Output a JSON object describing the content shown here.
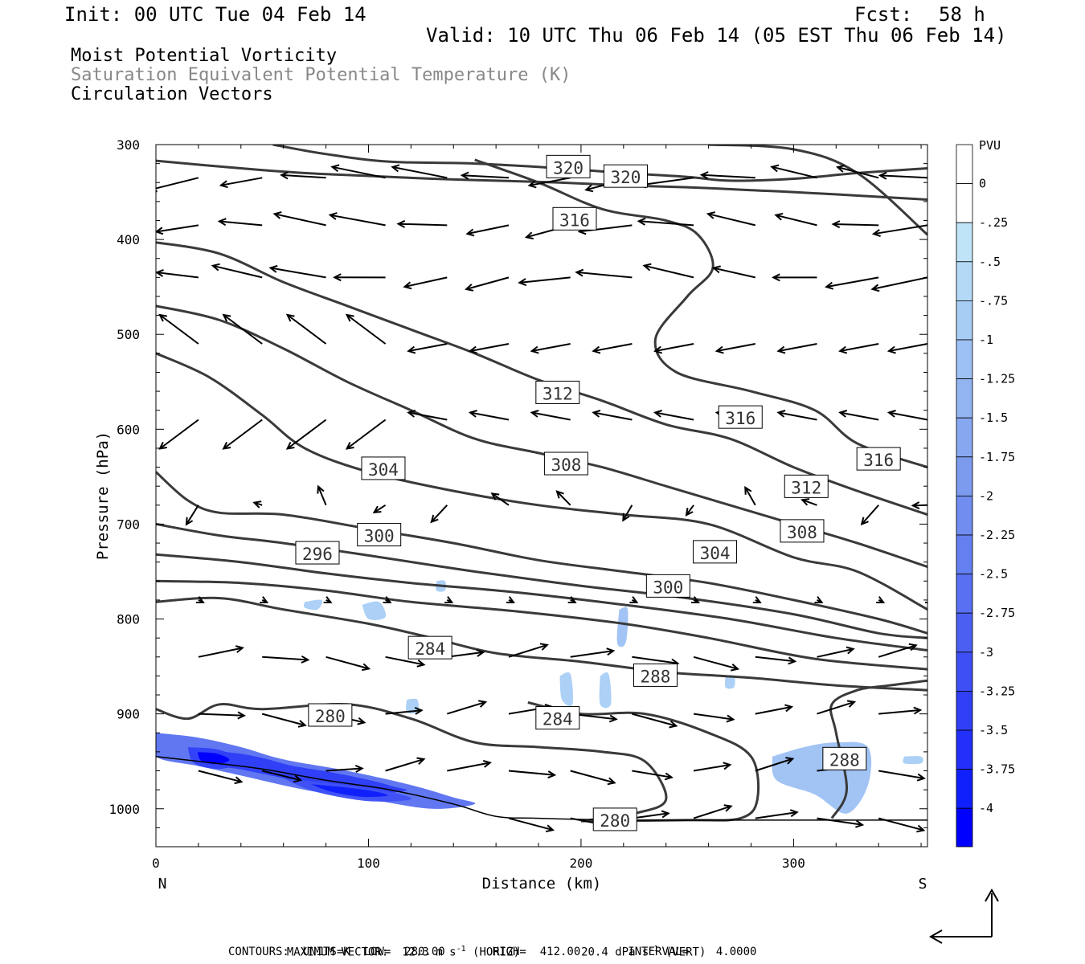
{
  "header": {
    "init": "Init: 00 UTC Tue 04 Feb 14",
    "fcst_label": "Fcst:",
    "fcst_value": "58 h",
    "valid": "Valid: 10 UTC Thu 06 Feb 14 (05 EST Thu 06 Feb 14)"
  },
  "titles": {
    "line1": "Moist Potential Vorticity",
    "line2": "Saturation Equivalent Potential Temperature (K)",
    "line3": "Circulation Vectors"
  },
  "colors": {
    "contour": "#3a3a3a",
    "title_gray": "#888888",
    "pv_light": "#bfe3f7",
    "pv_dark": "#0000ff"
  },
  "footer": {
    "line1_a": "MAXIMUM VECTOR:  12.3 m s",
    "line1_exp1": "-1",
    "line1_b": " (HORIZ)",
    "line1_c": "20.4 dPa s",
    "line1_exp2": "-1",
    "line1_d": " (VERT)",
    "line2": "CONTOURS:  UNITS=K  LOW=  280.00       HIGH=  412.00       INTERVAL=    4.0000"
  },
  "chart_data": {
    "type": "cross-section",
    "xlabel": "Distance (km)",
    "ylabel": "Pressure (hPa)",
    "x_range": [
      0,
      363
    ],
    "y_range": [
      300,
      1040
    ],
    "x_ticks": [
      0,
      100,
      200,
      300
    ],
    "y_ticks": [
      300,
      400,
      500,
      600,
      700,
      800,
      900,
      1000
    ],
    "x_end_labels": [
      "N",
      "S"
    ],
    "colorbar": {
      "unit": "PVU",
      "levels": [
        "0",
        "-.25",
        "-.5",
        "-.75",
        "-1",
        "-1.25",
        "-1.5",
        "-1.75",
        "-2",
        "-2.25",
        "-2.5",
        "-2.75",
        "-3",
        "-3.25",
        "-3.5",
        "-3.75",
        "-4"
      ],
      "colors": [
        "#ffffff",
        "#ffffff",
        "#bfe3f7",
        "#b3d9f6",
        "#a8cdf5",
        "#9dc1f4",
        "#92b5f2",
        "#87a8f0",
        "#7c9bee",
        "#708def",
        "#647ff0",
        "#5870f1",
        "#4b60f3",
        "#3e50f5",
        "#3040f7",
        "#2230f9",
        "#1020fc",
        "#0000ff"
      ]
    },
    "contour_labels": [
      {
        "text": "320",
        "x": 194,
        "p": 324
      },
      {
        "text": "320",
        "x": 221,
        "p": 334
      },
      {
        "text": "316",
        "x": 197,
        "p": 379
      },
      {
        "text": "312",
        "x": 189,
        "p": 562
      },
      {
        "text": "316",
        "x": 275,
        "p": 588
      },
      {
        "text": "316",
        "x": 340,
        "p": 632
      },
      {
        "text": "304",
        "x": 107,
        "p": 642
      },
      {
        "text": "308",
        "x": 193,
        "p": 637
      },
      {
        "text": "312",
        "x": 306,
        "p": 661
      },
      {
        "text": "300",
        "x": 105,
        "p": 712
      },
      {
        "text": "308",
        "x": 304,
        "p": 708
      },
      {
        "text": "296",
        "x": 76,
        "p": 731
      },
      {
        "text": "304",
        "x": 263,
        "p": 730
      },
      {
        "text": "300",
        "x": 241,
        "p": 766
      },
      {
        "text": "284",
        "x": 129,
        "p": 831
      },
      {
        "text": "288",
        "x": 235,
        "p": 860
      },
      {
        "text": "280",
        "x": 82,
        "p": 902
      },
      {
        "text": "284",
        "x": 189,
        "p": 905
      },
      {
        "text": "288",
        "x": 324,
        "p": 948
      },
      {
        "text": "280",
        "x": 216,
        "p": 1012
      }
    ],
    "contours": [
      {
        "theta": 320,
        "points": [
          [
            0,
            317
          ],
          [
            40,
            325
          ],
          [
            70,
            330
          ],
          [
            100,
            333
          ],
          [
            130,
            336
          ],
          [
            160,
            338
          ],
          [
            190,
            340
          ],
          [
            220,
            343
          ],
          [
            250,
            345
          ],
          [
            280,
            348
          ],
          [
            300,
            350
          ],
          [
            340,
            355
          ],
          [
            363,
            358
          ]
        ]
      },
      {
        "theta": 320,
        "points": [
          [
            55,
            300
          ],
          [
            80,
            310
          ],
          [
            110,
            318
          ],
          [
            150,
            320
          ],
          [
            190,
            325
          ],
          [
            220,
            330
          ],
          [
            250,
            334
          ],
          [
            270,
            338
          ],
          [
            300,
            336
          ],
          [
            330,
            330
          ],
          [
            363,
            325
          ]
        ]
      },
      {
        "theta": 316,
        "points": [
          [
            150,
            316
          ],
          [
            180,
            340
          ],
          [
            210,
            368
          ],
          [
            240,
            380
          ],
          [
            255,
            395
          ],
          [
            262,
            430
          ],
          [
            250,
            460
          ],
          [
            235,
            505
          ],
          [
            245,
            540
          ],
          [
            280,
            560
          ],
          [
            310,
            580
          ],
          [
            330,
            615
          ],
          [
            363,
            640
          ]
        ]
      },
      {
        "theta": 316,
        "points": [
          [
            260,
            300
          ],
          [
            300,
            305
          ],
          [
            330,
            330
          ],
          [
            363,
            395
          ]
        ]
      },
      {
        "theta": 312,
        "points": [
          [
            0,
            403
          ],
          [
            30,
            415
          ],
          [
            60,
            445
          ],
          [
            90,
            470
          ],
          [
            120,
            495
          ],
          [
            150,
            520
          ],
          [
            180,
            548
          ],
          [
            210,
            570
          ],
          [
            240,
            595
          ],
          [
            270,
            610
          ],
          [
            300,
            640
          ],
          [
            330,
            665
          ],
          [
            363,
            690
          ]
        ]
      },
      {
        "theta": 308,
        "points": [
          [
            0,
            470
          ],
          [
            30,
            485
          ],
          [
            60,
            515
          ],
          [
            90,
            550
          ],
          [
            120,
            580
          ],
          [
            150,
            610
          ],
          [
            180,
            625
          ],
          [
            210,
            640
          ],
          [
            240,
            660
          ],
          [
            270,
            680
          ],
          [
            300,
            700
          ],
          [
            330,
            720
          ],
          [
            363,
            745
          ]
        ]
      },
      {
        "theta": 304,
        "points": [
          [
            0,
            520
          ],
          [
            25,
            545
          ],
          [
            50,
            585
          ],
          [
            70,
            620
          ],
          [
            100,
            645
          ],
          [
            140,
            665
          ],
          [
            180,
            680
          ],
          [
            220,
            690
          ],
          [
            260,
            700
          ],
          [
            300,
            735
          ],
          [
            330,
            750
          ],
          [
            363,
            790
          ]
        ]
      },
      {
        "theta": 300,
        "points": [
          [
            0,
            645
          ],
          [
            15,
            675
          ],
          [
            30,
            688
          ],
          [
            60,
            690
          ],
          [
            100,
            705
          ],
          [
            140,
            720
          ],
          [
            180,
            738
          ],
          [
            220,
            750
          ],
          [
            260,
            762
          ],
          [
            300,
            780
          ],
          [
            340,
            800
          ],
          [
            363,
            815
          ]
        ]
      },
      {
        "theta": 296,
        "points": [
          [
            0,
            700
          ],
          [
            30,
            712
          ],
          [
            60,
            720
          ],
          [
            100,
            733
          ],
          [
            150,
            750
          ],
          [
            200,
            765
          ],
          [
            250,
            778
          ],
          [
            300,
            795
          ],
          [
            340,
            815
          ],
          [
            363,
            820
          ]
        ]
      },
      {
        "theta": 292,
        "points": [
          [
            0,
            732
          ],
          [
            40,
            740
          ],
          [
            80,
            752
          ],
          [
            120,
            762
          ],
          [
            170,
            772
          ],
          [
            220,
            785
          ],
          [
            270,
            800
          ],
          [
            320,
            820
          ],
          [
            363,
            833
          ]
        ]
      },
      {
        "theta": 288,
        "points": [
          [
            0,
            760
          ],
          [
            40,
            762
          ],
          [
            80,
            770
          ],
          [
            120,
            782
          ],
          [
            170,
            792
          ],
          [
            220,
            805
          ],
          [
            260,
            820
          ],
          [
            310,
            842
          ],
          [
            363,
            853
          ]
        ]
      },
      {
        "theta": 284,
        "points": [
          [
            0,
            782
          ],
          [
            30,
            778
          ],
          [
            60,
            790
          ],
          [
            100,
            805
          ],
          [
            130,
            820
          ],
          [
            160,
            836
          ],
          [
            200,
            845
          ],
          [
            240,
            856
          ],
          [
            280,
            862
          ],
          [
            320,
            870
          ],
          [
            363,
            875
          ]
        ]
      },
      {
        "theta": 280,
        "points": [
          [
            0,
            895
          ],
          [
            15,
            905
          ],
          [
            30,
            890
          ],
          [
            50,
            895
          ],
          [
            90,
            890
          ],
          [
            120,
            905
          ],
          [
            150,
            930
          ],
          [
            180,
            935
          ],
          [
            210,
            940
          ],
          [
            230,
            950
          ],
          [
            240,
            990
          ],
          [
            225,
            1005
          ],
          [
            200,
            1013
          ]
        ]
      },
      {
        "theta": 284,
        "points": [
          [
            200,
            1013
          ],
          [
            250,
            1012
          ],
          [
            275,
            1010
          ],
          [
            283,
            990
          ],
          [
            280,
            945
          ],
          [
            260,
            920
          ],
          [
            230,
            900
          ],
          [
            200,
            900
          ],
          [
            175,
            888
          ]
        ]
      },
      {
        "theta": 288,
        "points": [
          [
            318,
            1010
          ],
          [
            325,
            980
          ],
          [
            320,
            920
          ],
          [
            318,
            890
          ],
          [
            330,
            875
          ],
          [
            345,
            870
          ],
          [
            363,
            865
          ]
        ]
      }
    ],
    "vector_grid": {
      "x": [
        20,
        50,
        80,
        108,
        137,
        166,
        195,
        224,
        253,
        282,
        311,
        340,
        363
      ],
      "p": [
        335,
        385,
        440,
        510,
        590,
        680,
        780,
        840,
        900,
        960,
        1010
      ]
    },
    "pv_regions": [
      {
        "level": -2.5,
        "points": [
          [
            0,
            920
          ],
          [
            20,
            925
          ],
          [
            40,
            935
          ],
          [
            60,
            948
          ],
          [
            90,
            960
          ],
          [
            120,
            975
          ],
          [
            140,
            988
          ],
          [
            150,
            995
          ],
          [
            130,
            1000
          ],
          [
            100,
            990
          ],
          [
            70,
            980
          ],
          [
            40,
            965
          ],
          [
            20,
            955
          ],
          [
            0,
            945
          ]
        ]
      },
      {
        "level": -3.25,
        "points": [
          [
            15,
            935
          ],
          [
            30,
            938
          ],
          [
            40,
            950
          ],
          [
            30,
            958
          ],
          [
            18,
            952
          ]
        ]
      },
      {
        "level": -3.0,
        "points": [
          [
            60,
            968
          ],
          [
            90,
            975
          ],
          [
            110,
            982
          ],
          [
            120,
            990
          ],
          [
            100,
            992
          ],
          [
            75,
            982
          ]
        ]
      },
      {
        "level": -1.0,
        "points": [
          [
            290,
            945
          ],
          [
            305,
            935
          ],
          [
            320,
            930
          ],
          [
            335,
            935
          ],
          [
            335,
            975
          ],
          [
            325,
            1005
          ],
          [
            310,
            985
          ],
          [
            292,
            970
          ]
        ]
      },
      {
        "level": -0.75,
        "points": [
          [
            70,
            782
          ],
          [
            78,
            780
          ],
          [
            76,
            790
          ],
          [
            70,
            788
          ]
        ]
      },
      {
        "level": -0.75,
        "points": [
          [
            97,
            785
          ],
          [
            105,
            782
          ],
          [
            108,
            798
          ],
          [
            100,
            800
          ]
        ]
      },
      {
        "level": -0.75,
        "points": [
          [
            132,
            760
          ],
          [
            136,
            760
          ],
          [
            136,
            770
          ],
          [
            132,
            770
          ]
        ]
      },
      {
        "level": -1.0,
        "points": [
          [
            218,
            790
          ],
          [
            222,
            790
          ],
          [
            221,
            825
          ],
          [
            217,
            825
          ]
        ]
      },
      {
        "level": -0.75,
        "points": [
          [
            190,
            860
          ],
          [
            195,
            858
          ],
          [
            196,
            890
          ],
          [
            191,
            885
          ]
        ]
      },
      {
        "level": -0.75,
        "points": [
          [
            209,
            860
          ],
          [
            213,
            858
          ],
          [
            214,
            890
          ],
          [
            209,
            890
          ]
        ]
      },
      {
        "level": -0.75,
        "points": [
          [
            118,
            885
          ],
          [
            123,
            885
          ],
          [
            123,
            898
          ],
          [
            118,
            898
          ]
        ]
      },
      {
        "level": -0.75,
        "points": [
          [
            268,
            860
          ],
          [
            272,
            860
          ],
          [
            272,
            872
          ],
          [
            268,
            872
          ]
        ]
      },
      {
        "level": -0.75,
        "points": [
          [
            352,
            945
          ],
          [
            360,
            945
          ],
          [
            360,
            952
          ],
          [
            352,
            952
          ]
        ]
      }
    ]
  }
}
